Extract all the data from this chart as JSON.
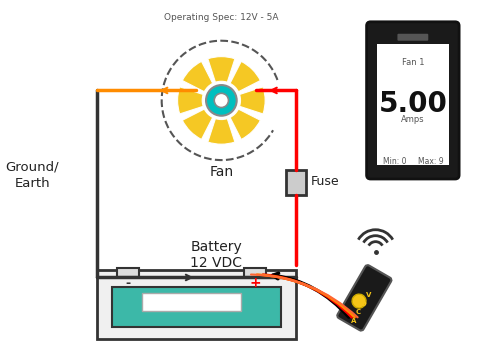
{
  "title": "Operating Spec: 12V - 5A",
  "bg_color": "#ffffff",
  "wire_orange": "#FF8C00",
  "wire_red": "#FF0000",
  "wire_black": "#000000",
  "circuit_line_color": "#FF4500",
  "ground_line_color": "#333333",
  "fan_blade_color": "#F5C518",
  "fan_hub_color": "#00BFBF",
  "fan_hub_inner": "#ffffff",
  "battery_body": "#2E2E2E",
  "battery_fill": "#3CB8A8",
  "fuse_color": "#333333",
  "phone_bg": "#1a1a1a",
  "phone_screen": "#ffffff",
  "text_ground": "Ground/\nEarth",
  "text_fan": "Fan",
  "text_fuse": "Fuse",
  "text_battery": "Battery\n12 VDC",
  "text_spec": "Operating Spec: 12V - 5A",
  "text_fan1": "Fan 1",
  "text_amps_val": "5.00",
  "text_amps": "Amps",
  "text_min": "Min: 0",
  "text_max": "Max: 9"
}
